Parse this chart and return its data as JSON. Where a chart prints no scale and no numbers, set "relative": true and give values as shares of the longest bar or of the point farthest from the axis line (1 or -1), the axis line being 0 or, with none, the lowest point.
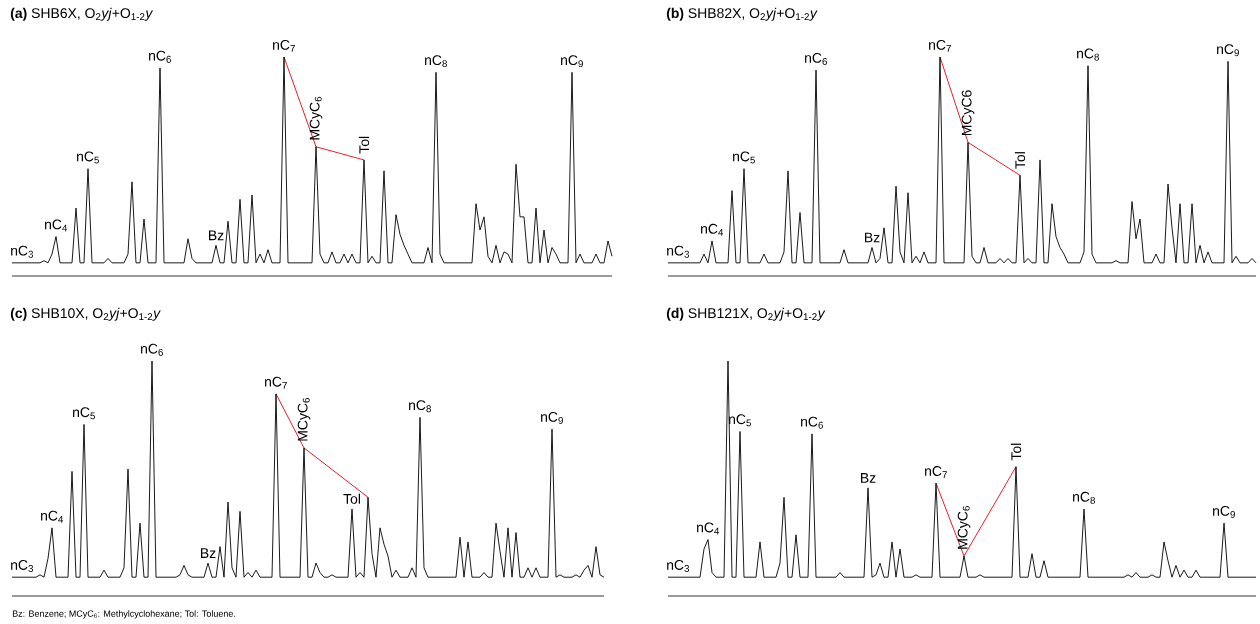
{
  "chart_data": [
    {
      "type": "line",
      "relative": true,
      "title": "**(a)** SHB6X, O$_{2}$*yj*+O$_{1-2}$*y*",
      "annotations": [
        {
          "text": "nC$_{3}$",
          "y": 0.06
        },
        {
          "text": "nC$_{4}$",
          "y": 0.18
        },
        {
          "text": "nC$_{5}$",
          "y": 0.49
        },
        {
          "text": "nC$_{6}$",
          "y": 0.95
        },
        {
          "text": "Bz",
          "y": 0.14
        },
        {
          "text": "nC$_{7}$",
          "y": 1
        },
        {
          "text": "MCyC$_{6}$",
          "y": 0.59
        },
        {
          "text": "Tol",
          "y": 0.53
        },
        {
          "text": "nC$_{8}$",
          "y": 0.93
        },
        {
          "text": "nC$_{9}$",
          "y": 0.93
        }
      ],
      "categories": [
        null,
        null,
        null,
        null,
        null,
        null,
        null,
        null,
        null,
        null,
        null,
        null,
        null,
        null,
        null,
        null,
        null,
        null,
        null,
        null,
        null,
        null,
        null,
        null,
        null,
        null,
        null,
        null,
        null,
        null,
        null,
        null,
        null,
        null,
        null,
        null,
        null,
        null,
        null,
        null,
        null,
        null,
        null,
        null,
        null,
        null,
        null,
        null,
        null,
        null,
        null,
        null,
        null,
        null,
        null,
        null,
        null,
        null,
        null,
        null,
        null,
        null,
        null,
        null,
        null,
        null,
        null,
        null,
        null,
        null,
        null,
        null,
        null,
        null,
        null,
        null,
        null,
        null,
        null,
        null,
        null,
        null,
        null,
        null,
        null,
        null,
        null,
        null,
        null,
        null,
        null,
        null,
        null,
        null,
        null,
        null,
        null,
        null,
        null,
        null,
        null,
        null,
        null,
        null,
        null,
        null,
        null,
        null,
        null,
        null,
        null,
        null,
        null,
        null,
        null,
        null,
        null,
        null,
        null,
        null,
        null,
        null,
        null,
        null,
        null,
        null,
        null,
        null,
        null,
        null,
        null,
        null,
        null,
        null,
        null,
        null,
        null,
        null,
        null,
        null,
        null,
        null,
        null,
        null,
        null,
        null,
        null,
        null,
        null,
        null,
        null
      ],
      "series": [
        {
          "color": "#000000",
          "values": [
            0.06,
            0.06,
            0.06,
            0.06,
            0.06,
            0.06,
            0.06,
            0.06,
            0.07,
            0.06,
            0.1,
            0.18,
            0.06,
            0.06,
            0.06,
            0.06,
            0.31,
            0.06,
            0.06,
            0.49,
            0.06,
            0.06,
            0.06,
            0.06,
            0.08,
            0.06,
            0.06,
            0.06,
            0.06,
            0.1,
            0.43,
            0.06,
            0.06,
            0.26,
            0.06,
            0.06,
            0.06,
            0.95,
            0.06,
            0.06,
            0.06,
            0.06,
            0.06,
            0.06,
            0.17,
            0.08,
            0.06,
            0.06,
            0.06,
            0.06,
            0.06,
            0.14,
            0.06,
            0.06,
            0.25,
            0.06,
            0.06,
            0.35,
            0.06,
            0.06,
            0.37,
            0.06,
            0.1,
            0.06,
            0.12,
            0.06,
            0.06,
            0.06,
            1,
            0.06,
            0.06,
            0.06,
            0.06,
            0.06,
            0.06,
            0.06,
            0.59,
            0.1,
            0.06,
            0.06,
            0.11,
            0.06,
            0.06,
            0.1,
            0.06,
            0.1,
            0.06,
            0.06,
            0.53,
            0.06,
            0.09,
            0.06,
            0.06,
            0.48,
            0.06,
            0.06,
            0.28,
            0.19,
            0.14,
            0.1,
            0.06,
            0.06,
            0.06,
            0.06,
            0.13,
            0.06,
            0.93,
            0.1,
            0.06,
            0.06,
            0.06,
            0.06,
            0.06,
            0.06,
            0.06,
            0.06,
            0.33,
            0.21,
            0.27,
            0.09,
            0.06,
            0.14,
            0.06,
            0.11,
            0.1,
            0.06,
            0.51,
            0.27,
            0.27,
            0.06,
            0.06,
            0.31,
            0.06,
            0.21,
            0.06,
            0.13,
            0.1,
            0.06,
            0.06,
            0.06,
            0.93,
            0.06,
            0.1,
            0.06,
            0.06,
            0.06,
            0.1,
            0.06,
            0.06,
            0.16,
            0.09
          ]
        },
        {
          "color": "#e8202a",
          "values": [
            null,
            null,
            null,
            null,
            null,
            null,
            null,
            null,
            null,
            null,
            null,
            null,
            null,
            null,
            null,
            null,
            null,
            null,
            null,
            null,
            null,
            null,
            null,
            null,
            null,
            null,
            null,
            null,
            null,
            null,
            null,
            null,
            null,
            null,
            null,
            null,
            null,
            null,
            null,
            null,
            null,
            null,
            null,
            null,
            null,
            null,
            null,
            null,
            null,
            null,
            null,
            null,
            null,
            null,
            null,
            null,
            null,
            null,
            null,
            null,
            null,
            null,
            null,
            null,
            null,
            null,
            null,
            null,
            1,
            null,
            null,
            null,
            null,
            null,
            null,
            null,
            0.59,
            null,
            null,
            null,
            null,
            null,
            null,
            null,
            null,
            null,
            null,
            null,
            0.53,
            null,
            null,
            null,
            null,
            null,
            null,
            null,
            null,
            null,
            null,
            null,
            null,
            null,
            null,
            null,
            null,
            null,
            null,
            null,
            null,
            null,
            null,
            null,
            null,
            null,
            null,
            null,
            null,
            null,
            null,
            null,
            null,
            null,
            null,
            null,
            null,
            null,
            null,
            null,
            null,
            null,
            null,
            null,
            null,
            null,
            null,
            null,
            null,
            null,
            null,
            null,
            null,
            null,
            null,
            null,
            null,
            null,
            null,
            null,
            null,
            null,
            null
          ]
        }
      ]
    },
    {
      "type": "line",
      "relative": true,
      "title": "**(b)** SHB82X, O$_{2}$*yj*+O$_{1-2}$*y*",
      "annotations": [
        {
          "text": "nC$_{3}$",
          "y": 0.06
        },
        {
          "text": "nC$_{4}$",
          "y": 0.16
        },
        {
          "text": "nC$_{5}$",
          "y": 0.49
        },
        {
          "text": "nC$_{6}$",
          "y": 0.94
        },
        {
          "text": "Bz",
          "y": 0.13
        },
        {
          "text": "nC$_{7}$",
          "y": 1
        },
        {
          "text": "MCyC6",
          "y": 0.61
        },
        {
          "text": "Tol",
          "y": 0.46
        },
        {
          "text": "nC$_{8}$",
          "y": 0.96
        },
        {
          "text": "nC$_{9}$",
          "y": 0.98
        }
      ],
      "categories": [
        null,
        null,
        null,
        null,
        null,
        null,
        null,
        null,
        null,
        null,
        null,
        null,
        null,
        null,
        null,
        null,
        null,
        null,
        null,
        null,
        null,
        null,
        null,
        null,
        null,
        null,
        null,
        null,
        null,
        null,
        null,
        null,
        null,
        null,
        null,
        null,
        null,
        null,
        null,
        null,
        null,
        null,
        null,
        null,
        null,
        null,
        null,
        null,
        null,
        null,
        null,
        null,
        null,
        null,
        null,
        null,
        null,
        null,
        null,
        null,
        null,
        null,
        null,
        null,
        null,
        null,
        null,
        null,
        null,
        null,
        null,
        null,
        null,
        null,
        null,
        null,
        null,
        null,
        null,
        null,
        null,
        null,
        null,
        null,
        null,
        null,
        null,
        null,
        null,
        null,
        null,
        null,
        null,
        null,
        null,
        null,
        null,
        null,
        null,
        null,
        null,
        null,
        null,
        null,
        null,
        null,
        null,
        null,
        null,
        null,
        null,
        null,
        null,
        null,
        null,
        null,
        null,
        null,
        null,
        null,
        null,
        null,
        null,
        null,
        null,
        null,
        null,
        null,
        null,
        null,
        null,
        null,
        null,
        null,
        null,
        null,
        null,
        null,
        null,
        null,
        null,
        null,
        null,
        null,
        null,
        null,
        null,
        null
      ],
      "series": [
        {
          "color": "#000000",
          "values": [
            0.06,
            0.06,
            0.06,
            0.06,
            0.06,
            0.06,
            0.06,
            0.06,
            0.06,
            0.1,
            0.06,
            0.16,
            0.06,
            0.06,
            0.06,
            0.06,
            0.39,
            0.06,
            0.06,
            0.49,
            0.06,
            0.06,
            0.06,
            0.06,
            0.1,
            0.06,
            0.06,
            0.06,
            0.06,
            0.11,
            0.48,
            0.06,
            0.06,
            0.29,
            0.06,
            0.06,
            0.06,
            0.94,
            0.06,
            0.06,
            0.06,
            0.06,
            0.06,
            0.06,
            0.12,
            0.06,
            0.06,
            0.06,
            0.06,
            0.06,
            0.06,
            0.13,
            0.06,
            0.08,
            0.22,
            0.06,
            0.06,
            0.41,
            0.11,
            0.06,
            0.38,
            0.06,
            0.09,
            0.06,
            0.11,
            0.06,
            0.06,
            0.06,
            1,
            0.06,
            0.06,
            0.06,
            0.06,
            0.06,
            0.06,
            0.61,
            0.09,
            0.06,
            0.06,
            0.13,
            0.06,
            0.06,
            0.06,
            0.08,
            0.06,
            0.08,
            0.06,
            0.06,
            0.46,
            0.06,
            0.08,
            0.06,
            0.06,
            0.53,
            0.06,
            0.06,
            0.33,
            0.18,
            0.13,
            0.1,
            0.06,
            0.06,
            0.06,
            0.06,
            0.11,
            0.96,
            0.1,
            0.06,
            0.06,
            0.06,
            0.06,
            0.06,
            0.07,
            0.06,
            0.06,
            0.06,
            0.34,
            0.17,
            0.26,
            0.06,
            0.06,
            0.06,
            0.1,
            0.06,
            0.06,
            0.42,
            0.22,
            0.06,
            0.33,
            0.06,
            0.06,
            0.33,
            0.06,
            0.14,
            0.06,
            0.11,
            0.06,
            0.06,
            0.06,
            0.06,
            0.98,
            0.06,
            0.09,
            0.06,
            0.06,
            0.06,
            0.08,
            0.06
          ]
        },
        {
          "color": "#e8202a",
          "values": [
            null,
            null,
            null,
            null,
            null,
            null,
            null,
            null,
            null,
            null,
            null,
            null,
            null,
            null,
            null,
            null,
            null,
            null,
            null,
            null,
            null,
            null,
            null,
            null,
            null,
            null,
            null,
            null,
            null,
            null,
            null,
            null,
            null,
            null,
            null,
            null,
            null,
            null,
            null,
            null,
            null,
            null,
            null,
            null,
            null,
            null,
            null,
            null,
            null,
            null,
            null,
            null,
            null,
            null,
            null,
            null,
            null,
            null,
            null,
            null,
            null,
            null,
            null,
            null,
            null,
            null,
            null,
            null,
            1,
            null,
            null,
            null,
            null,
            null,
            null,
            0.61,
            null,
            null,
            null,
            null,
            null,
            null,
            null,
            null,
            null,
            null,
            null,
            null,
            0.46,
            null,
            null,
            null,
            null,
            null,
            null,
            null,
            null,
            null,
            null,
            null,
            null,
            null,
            null,
            null,
            null,
            null,
            null,
            null,
            null,
            null,
            null,
            null,
            null,
            null,
            null,
            null,
            null,
            null,
            null,
            null,
            null,
            null,
            null,
            null,
            null,
            null,
            null,
            null,
            null,
            null,
            null,
            null,
            null,
            null,
            null,
            null,
            null,
            null,
            null,
            null,
            null,
            null,
            null,
            null,
            null,
            null,
            null,
            null
          ]
        }
      ]
    },
    {
      "type": "line",
      "relative": true,
      "title": "**(c)** SHB10X, O$_{2}$*yj*+O$_{1-2}$*y*",
      "annotations": [
        {
          "text": "nC$_{3}$",
          "y": 0.08
        },
        {
          "text": "nC$_{4}$",
          "y": 0.29
        },
        {
          "text": "nC$_{5}$",
          "y": 0.73
        },
        {
          "text": "nC$_{6}$",
          "y": 1
        },
        {
          "text": "Bz",
          "y": 0.14
        },
        {
          "text": "nC$_{7}$",
          "y": 0.86
        },
        {
          "text": "MCyC$_{6}$",
          "y": 0.63
        },
        {
          "text": "Tol",
          "y": 0.37
        },
        {
          "text": "nC$_{8}$",
          "y": 0.76
        },
        {
          "text": "nC$_{9}$",
          "y": 0.71
        },
        "Bz: Benzene; MCyC$_{6}$: Methylcyclohexane; Tol: Toluene."
      ],
      "categories": [
        null,
        null,
        null,
        null,
        null,
        null,
        null,
        null,
        null,
        null,
        null,
        null,
        null,
        null,
        null,
        null,
        null,
        null,
        null,
        null,
        null,
        null,
        null,
        null,
        null,
        null,
        null,
        null,
        null,
        null,
        null,
        null,
        null,
        null,
        null,
        null,
        null,
        null,
        null,
        null,
        null,
        null,
        null,
        null,
        null,
        null,
        null,
        null,
        null,
        null,
        null,
        null,
        null,
        null,
        null,
        null,
        null,
        null,
        null,
        null,
        null,
        null,
        null,
        null,
        null,
        null,
        null,
        null,
        null,
        null,
        null,
        null,
        null,
        null,
        null,
        null,
        null,
        null,
        null,
        null,
        null,
        null,
        null,
        null,
        null,
        null,
        null,
        null,
        null,
        null,
        null,
        null,
        null,
        null,
        null,
        null,
        null,
        null,
        null,
        null,
        null,
        null,
        null,
        null,
        null,
        null,
        null,
        null,
        null,
        null,
        null,
        null,
        null,
        null,
        null,
        null,
        null,
        null,
        null,
        null,
        null,
        null,
        null,
        null,
        null,
        null,
        null,
        null,
        null,
        null,
        null,
        null,
        null,
        null,
        null,
        null,
        null,
        null,
        null,
        null,
        null,
        null,
        null,
        null,
        null,
        null,
        null,
        null,
        null
      ],
      "series": [
        {
          "color": "#000000",
          "values": [
            0.08,
            0.08,
            0.08,
            0.08,
            0.08,
            0.08,
            0.08,
            0.09,
            0.08,
            0.16,
            0.29,
            0.08,
            0.08,
            0.08,
            0.08,
            0.53,
            0.08,
            0.08,
            0.73,
            0.08,
            0.08,
            0.08,
            0.08,
            0.11,
            0.08,
            0.08,
            0.08,
            0.08,
            0.12,
            0.54,
            0.08,
            0.08,
            0.31,
            0.08,
            0.08,
            1,
            0.08,
            0.08,
            0.08,
            0.08,
            0.08,
            0.08,
            0.09,
            0.13,
            0.09,
            0.08,
            0.08,
            0.08,
            0.08,
            0.14,
            0.08,
            0.08,
            0.21,
            0.08,
            0.4,
            0.12,
            0.08,
            0.36,
            0.08,
            0.1,
            0.08,
            0.11,
            0.08,
            0.08,
            0.08,
            0.08,
            0.86,
            0.08,
            0.08,
            0.08,
            0.08,
            0.08,
            0.08,
            0.63,
            0.08,
            0.08,
            0.14,
            0.1,
            0.08,
            0.08,
            0.09,
            0.08,
            0.08,
            0.08,
            0.08,
            0.37,
            0.08,
            0.1,
            0.08,
            0.42,
            0.18,
            0.08,
            0.29,
            0.22,
            0.17,
            0.08,
            0.11,
            0.08,
            0.08,
            0.08,
            0.12,
            0.08,
            0.76,
            0.12,
            0.08,
            0.08,
            0.08,
            0.08,
            0.08,
            0.08,
            0.08,
            0.08,
            0.25,
            0.08,
            0.23,
            0.08,
            0.08,
            0.08,
            0.1,
            0.08,
            0.08,
            0.31,
            0.19,
            0.08,
            0.29,
            0.08,
            0.27,
            0.08,
            0.08,
            0.12,
            0.08,
            0.12,
            0.08,
            0.08,
            0.08,
            0.71,
            0.08,
            0.09,
            0.08,
            0.08,
            0.08,
            0.09,
            0.08,
            0.11,
            0.13,
            0.08,
            0.21,
            0.09,
            0.08
          ]
        },
        {
          "color": "#e8202a",
          "values": [
            null,
            null,
            null,
            null,
            null,
            null,
            null,
            null,
            null,
            null,
            null,
            null,
            null,
            null,
            null,
            null,
            null,
            null,
            null,
            null,
            null,
            null,
            null,
            null,
            null,
            null,
            null,
            null,
            null,
            null,
            null,
            null,
            null,
            null,
            null,
            null,
            null,
            null,
            null,
            null,
            null,
            null,
            null,
            null,
            null,
            null,
            null,
            null,
            null,
            null,
            null,
            null,
            null,
            null,
            null,
            null,
            null,
            null,
            null,
            null,
            null,
            null,
            null,
            null,
            null,
            null,
            0.86,
            null,
            null,
            null,
            null,
            null,
            null,
            0.63,
            null,
            null,
            null,
            null,
            null,
            null,
            null,
            null,
            null,
            null,
            null,
            null,
            null,
            null,
            null,
            0.42,
            null,
            null,
            null,
            null,
            null,
            null,
            null,
            null,
            null,
            null,
            null,
            null,
            null,
            null,
            null,
            null,
            null,
            null,
            null,
            null,
            null,
            null,
            null,
            null,
            null,
            null,
            null,
            null,
            null,
            null,
            null,
            null,
            null,
            null,
            null,
            null,
            null,
            null,
            null,
            null,
            null,
            null,
            null,
            null,
            null,
            null,
            null,
            null,
            null,
            null,
            null,
            null,
            null,
            null,
            null,
            null,
            null,
            null,
            null
          ]
        }
      ]
    },
    {
      "type": "line",
      "relative": true,
      "title": "**(d)** SHB121X, O$_{2}$*yj*+O$_{1-2}$*y*",
      "annotations": [
        {
          "text": "nC$_{3}$",
          "y": 0.08
        },
        {
          "text": "nC$_{4}$",
          "y": 0.24
        },
        {
          "text": "nC$_{5}$",
          "y": 0.7
        },
        {
          "text": "nC$_{6}$",
          "y": 0.69
        },
        {
          "text": "Bz",
          "y": 0.46
        },
        {
          "text": "nC$_{7}$",
          "y": 0.48
        },
        {
          "text": "MCyC$_{6}$",
          "y": 0.17
        },
        {
          "text": "Tol",
          "y": 0.55
        },
        {
          "text": "nC$_{8}$",
          "y": 0.37
        },
        {
          "text": "nC$_{9}$",
          "y": 0.31
        }
      ],
      "categories": [
        null,
        null,
        null,
        null,
        null,
        null,
        null,
        null,
        null,
        null,
        null,
        null,
        null,
        null,
        null,
        null,
        null,
        null,
        null,
        null,
        null,
        null,
        null,
        null,
        null,
        null,
        null,
        null,
        null,
        null,
        null,
        null,
        null,
        null,
        null,
        null,
        null,
        null,
        null,
        null,
        null,
        null,
        null,
        null,
        null,
        null,
        null,
        null,
        null,
        null,
        null,
        null,
        null,
        null,
        null,
        null,
        null,
        null,
        null,
        null,
        null,
        null,
        null,
        null,
        null,
        null,
        null,
        null,
        null,
        null,
        null,
        null,
        null,
        null,
        null,
        null,
        null,
        null,
        null,
        null,
        null,
        null,
        null,
        null,
        null,
        null,
        null,
        null,
        null,
        null,
        null,
        null,
        null,
        null,
        null,
        null,
        null,
        null,
        null,
        null,
        null,
        null,
        null,
        null,
        null,
        null,
        null,
        null,
        null,
        null,
        null,
        null,
        null,
        null,
        null,
        null,
        null,
        null,
        null,
        null,
        null,
        null,
        null,
        null,
        null,
        null,
        null,
        null,
        null,
        null,
        null,
        null,
        null,
        null,
        null,
        null,
        null,
        null,
        null,
        null,
        null,
        null,
        null,
        null,
        null,
        null,
        null,
        null
      ],
      "series": [
        {
          "color": "#000000",
          "values": [
            0.08,
            0.08,
            0.08,
            0.08,
            0.08,
            0.08,
            0.08,
            0.08,
            0.08,
            0.2,
            0.24,
            0.1,
            0.08,
            0.08,
            0.08,
            1,
            0.08,
            0.08,
            0.7,
            0.08,
            0.08,
            0.08,
            0.08,
            0.23,
            0.08,
            0.08,
            0.08,
            0.08,
            0.14,
            0.42,
            0.08,
            0.08,
            0.26,
            0.08,
            0.08,
            0.08,
            0.69,
            0.08,
            0.08,
            0.08,
            0.08,
            0.08,
            0.08,
            0.1,
            0.08,
            0.08,
            0.08,
            0.08,
            0.08,
            0.08,
            0.46,
            0.08,
            0.09,
            0.14,
            0.08,
            0.08,
            0.23,
            0.08,
            0.2,
            0.08,
            0.08,
            0.08,
            0.09,
            0.08,
            0.08,
            0.08,
            0.08,
            0.48,
            0.08,
            0.08,
            0.08,
            0.08,
            0.08,
            0.08,
            0.17,
            0.08,
            0.08,
            0.08,
            0.09,
            0.08,
            0.08,
            0.08,
            0.08,
            0.08,
            0.08,
            0.08,
            0.08,
            0.55,
            0.08,
            0.08,
            0.08,
            0.18,
            0.08,
            0.08,
            0.15,
            0.08,
            0.08,
            0.08,
            0.08,
            0.08,
            0.08,
            0.08,
            0.08,
            0.08,
            0.37,
            0.08,
            0.08,
            0.08,
            0.08,
            0.08,
            0.08,
            0.08,
            0.08,
            0.08,
            0.08,
            0.09,
            0.08,
            0.1,
            0.08,
            0.08,
            0.08,
            0.09,
            0.08,
            0.08,
            0.23,
            0.15,
            0.08,
            0.13,
            0.08,
            0.11,
            0.08,
            0.08,
            0.11,
            0.08,
            0.08,
            0.08,
            0.08,
            0.08,
            0.08,
            0.31,
            0.08,
            0.08,
            0.08,
            0.08,
            0.08,
            0.08,
            0.08,
            0.08
          ]
        },
        {
          "color": "#e8202a",
          "values": [
            null,
            null,
            null,
            null,
            null,
            null,
            null,
            null,
            null,
            null,
            null,
            null,
            null,
            null,
            null,
            null,
            null,
            null,
            null,
            null,
            null,
            null,
            null,
            null,
            null,
            null,
            null,
            null,
            null,
            null,
            null,
            null,
            null,
            null,
            null,
            null,
            null,
            null,
            null,
            null,
            null,
            null,
            null,
            null,
            null,
            null,
            null,
            null,
            null,
            null,
            null,
            null,
            null,
            null,
            null,
            null,
            null,
            null,
            null,
            null,
            null,
            null,
            null,
            null,
            null,
            null,
            null,
            0.48,
            null,
            null,
            null,
            null,
            null,
            null,
            0.17,
            null,
            null,
            null,
            null,
            null,
            null,
            null,
            null,
            null,
            null,
            null,
            null,
            0.55,
            null,
            null,
            null,
            null,
            null,
            null,
            null,
            null,
            null,
            null,
            null,
            null,
            null,
            null,
            null,
            null,
            null,
            null,
            null,
            null,
            null,
            null,
            null,
            null,
            null,
            null,
            null,
            null,
            null,
            null,
            null,
            null,
            null,
            null,
            null,
            null,
            null,
            null,
            null,
            null,
            null,
            null,
            null,
            null,
            null,
            null,
            null,
            null,
            null,
            null,
            null,
            null,
            null,
            null,
            null,
            null,
            null,
            null,
            null,
            null
          ]
        }
      ]
    }
  ]
}
